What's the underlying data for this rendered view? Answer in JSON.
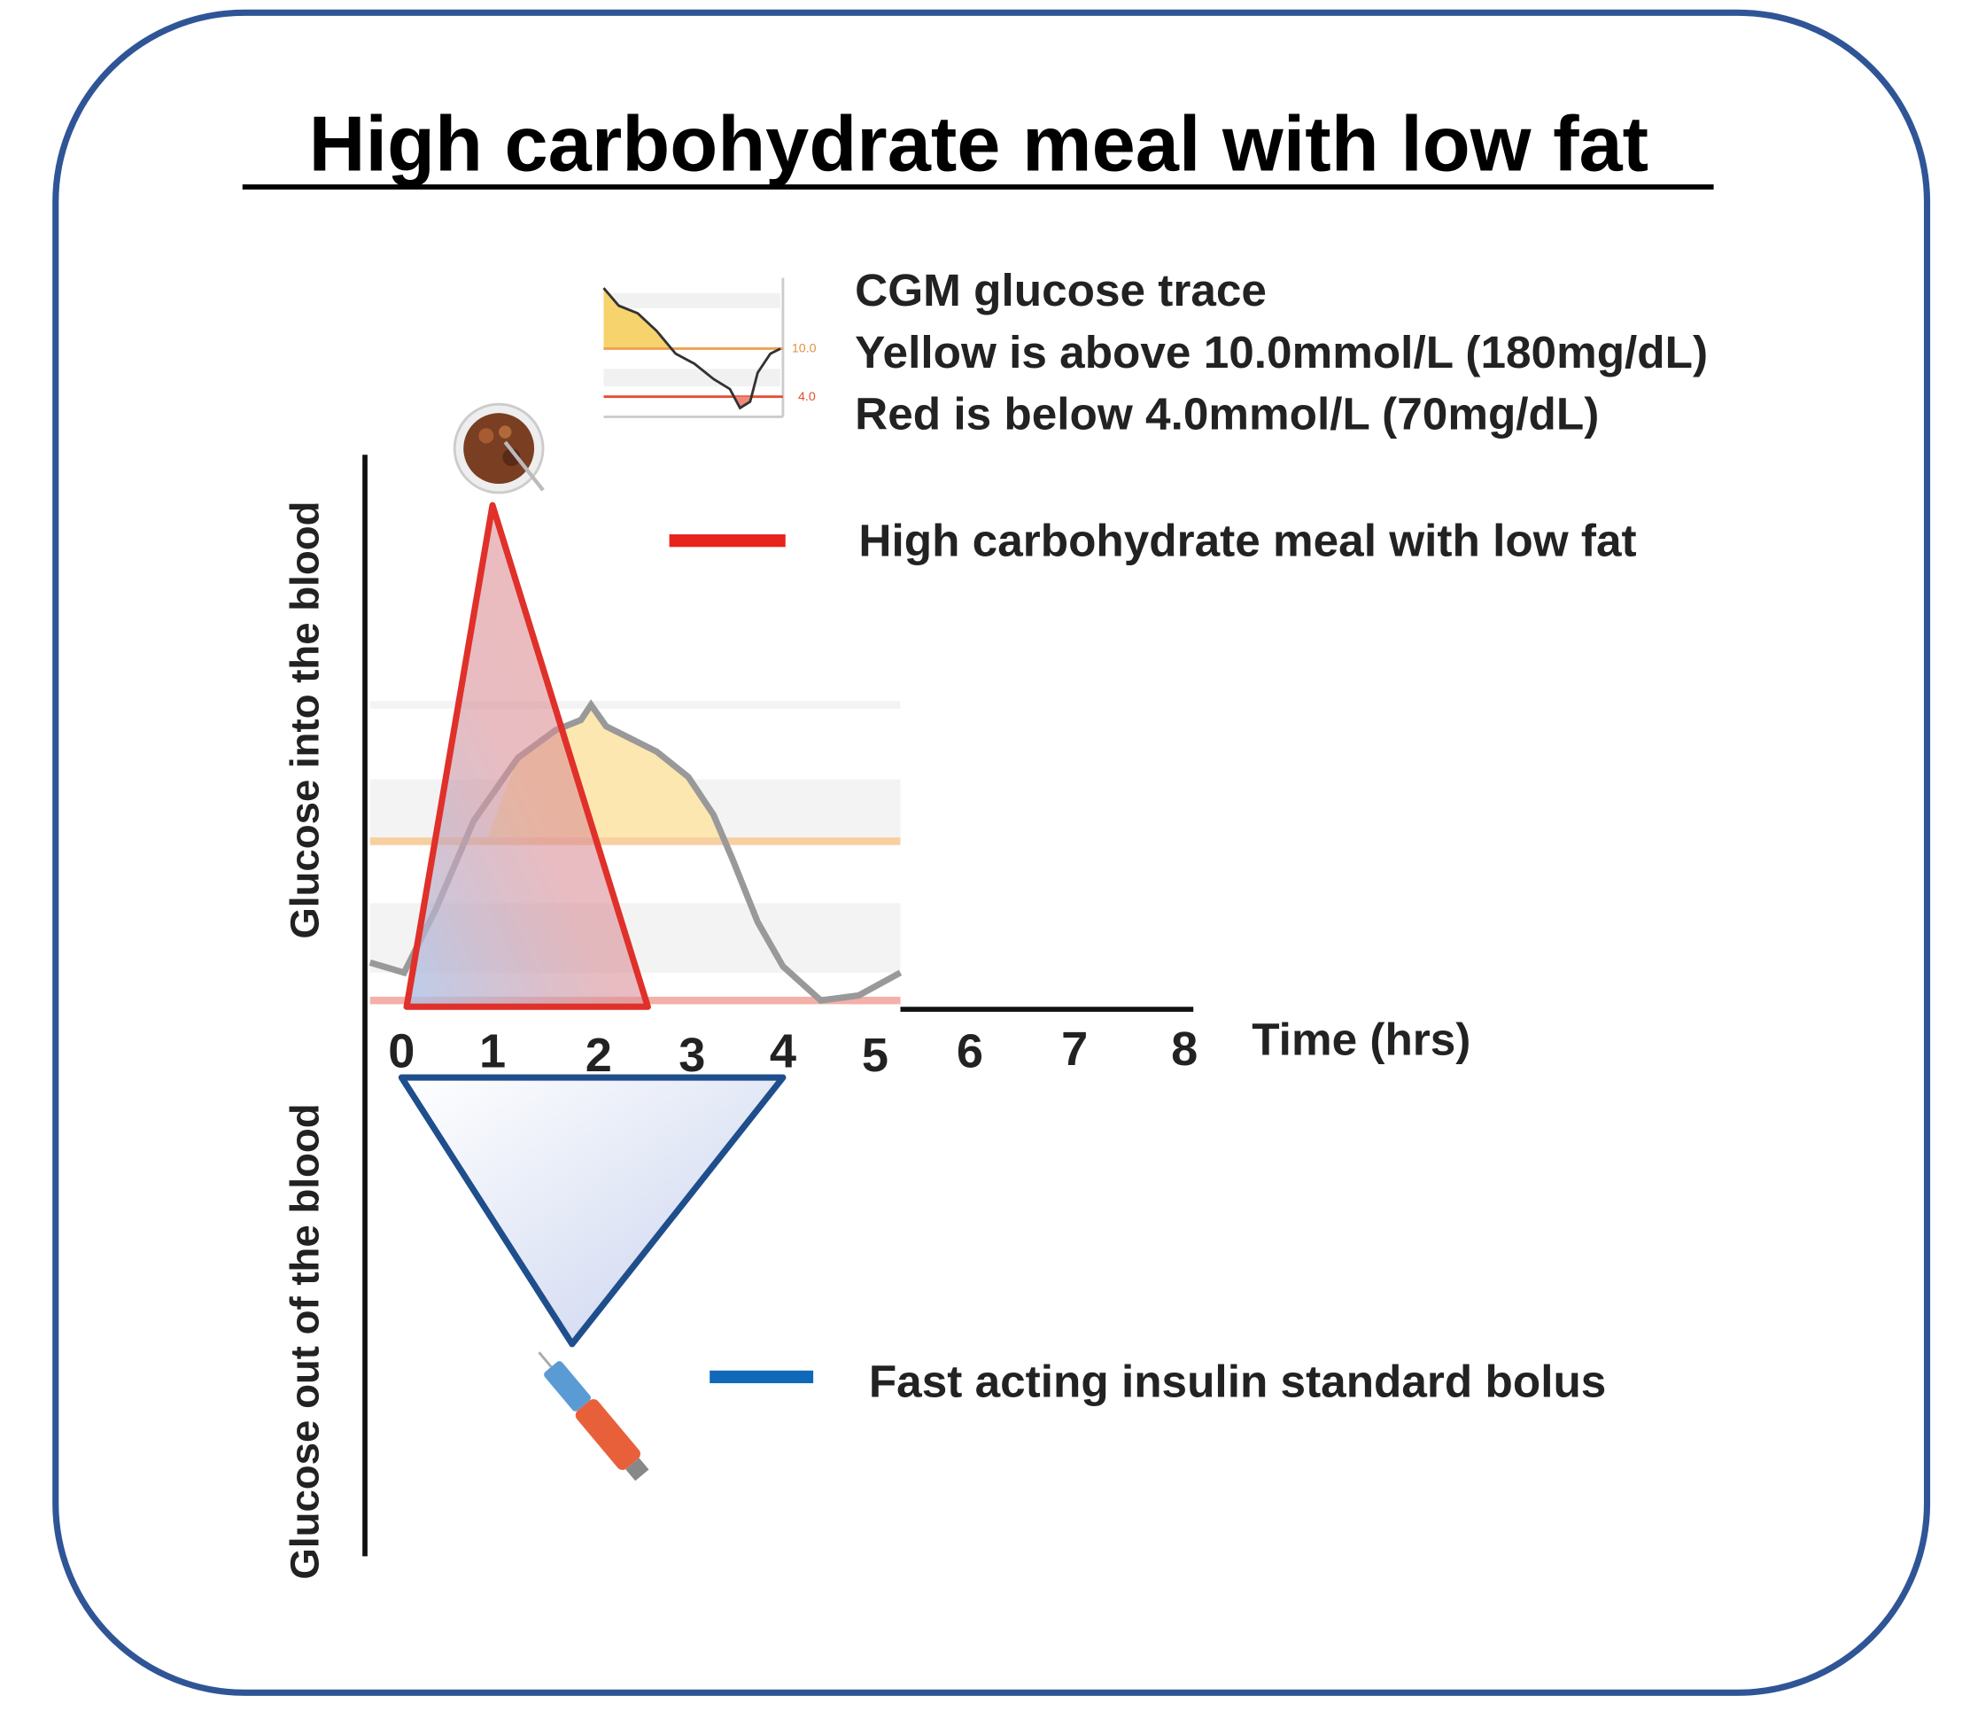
{
  "title": "High carbohydrate meal with low fat",
  "cgm_legend": {
    "heading": "CGM glucose trace",
    "lines": [
      "Yellow is above 10.0mmol/L (180mg/dL)",
      "Red is below 4.0mmol/L (70mg/dL)"
    ],
    "thumbnail_labels": [
      "10.0",
      "4.0"
    ]
  },
  "legend": [
    {
      "label": "High carbohydrate meal with low fat"
    },
    {
      "label": "Fast acting insulin standard bolus"
    }
  ],
  "axes": {
    "y_upper": "Glucose into the blood",
    "y_lower": "Glucose out of the blood",
    "x_label": "Time (hrs)",
    "x_ticks": [
      "0",
      "1",
      "2",
      "3",
      "4",
      "5",
      "6",
      "7",
      "8"
    ]
  }
}
